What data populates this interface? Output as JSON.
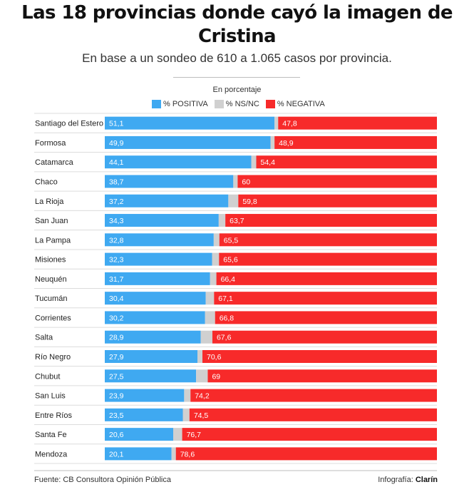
{
  "header": {
    "title": "Las 18 provincias donde cayó la imagen de Cristina",
    "subtitle": "En base a un sondeo de 610 a 1.065 casos por provincia."
  },
  "legend": {
    "unit": "En porcentaje",
    "items": [
      {
        "label": "% POSITIVA",
        "color": "#3fa9f1"
      },
      {
        "label": "% NS/NC",
        "color": "#d0d0d0"
      },
      {
        "label": "% NEGATIVA",
        "color": "#f72a2a"
      }
    ]
  },
  "chart_data": {
    "type": "bar",
    "orientation": "horizontal",
    "stacked": true,
    "title": "Las 18 provincias donde cayó la imagen de Cristina",
    "subtitle": "En base a un sondeo de 610 a 1.065 casos por provincia.",
    "xlabel": "",
    "ylabel": "",
    "xlim": [
      0,
      100
    ],
    "grid": false,
    "legend_position": "top",
    "categories": [
      "Santiago del Estero",
      "Formosa",
      "Catamarca",
      "Chaco",
      "La Rioja",
      "San Juan",
      "La Pampa",
      "Misiones",
      "Neuquén",
      "Tucumán",
      "Corrientes",
      "Salta",
      "Río Negro",
      "Chubut",
      "San Luis",
      "Entre Ríos",
      "Santa Fe",
      "Mendoza"
    ],
    "series": [
      {
        "name": "% POSITIVA",
        "color": "#3fa9f1",
        "values": [
          51.1,
          49.9,
          44.1,
          38.7,
          37.2,
          34.3,
          32.8,
          32.3,
          31.7,
          30.4,
          30.2,
          28.9,
          27.9,
          27.5,
          23.9,
          23.5,
          20.6,
          20.1
        ],
        "labels": [
          "51,1",
          "49,9",
          "44,1",
          "38,7",
          "37,2",
          "34,3",
          "32,8",
          "32,3",
          "31,7",
          "30,4",
          "30,2",
          "28,9",
          "27,9",
          "27,5",
          "23,9",
          "23,5",
          "20,6",
          "20,1"
        ]
      },
      {
        "name": "% NS/NC",
        "color": "#d0d0d0",
        "values": [
          1.1,
          1.2,
          1.5,
          1.3,
          3.0,
          2.0,
          1.7,
          2.1,
          1.9,
          2.5,
          3.0,
          3.5,
          1.5,
          3.5,
          1.9,
          2.0,
          2.7,
          1.3
        ]
      },
      {
        "name": "% NEGATIVA",
        "color": "#f72a2a",
        "values": [
          47.8,
          48.9,
          54.4,
          60.0,
          59.8,
          63.7,
          65.5,
          65.6,
          66.4,
          67.1,
          66.8,
          67.6,
          70.6,
          69.0,
          74.2,
          74.5,
          76.7,
          78.6
        ],
        "labels": [
          "47,8",
          "48,9",
          "54,4",
          "60",
          "59,8",
          "63,7",
          "65,5",
          "65,6",
          "66,4",
          "67,1",
          "66,8",
          "67,6",
          "70,6",
          "69",
          "74,2",
          "74,5",
          "76,7",
          "78,6"
        ]
      }
    ]
  },
  "footer": {
    "source": "Fuente: CB Consultora Opinión Pública",
    "credit_prefix": "Infografía: ",
    "credit_brand": "Clarín"
  }
}
